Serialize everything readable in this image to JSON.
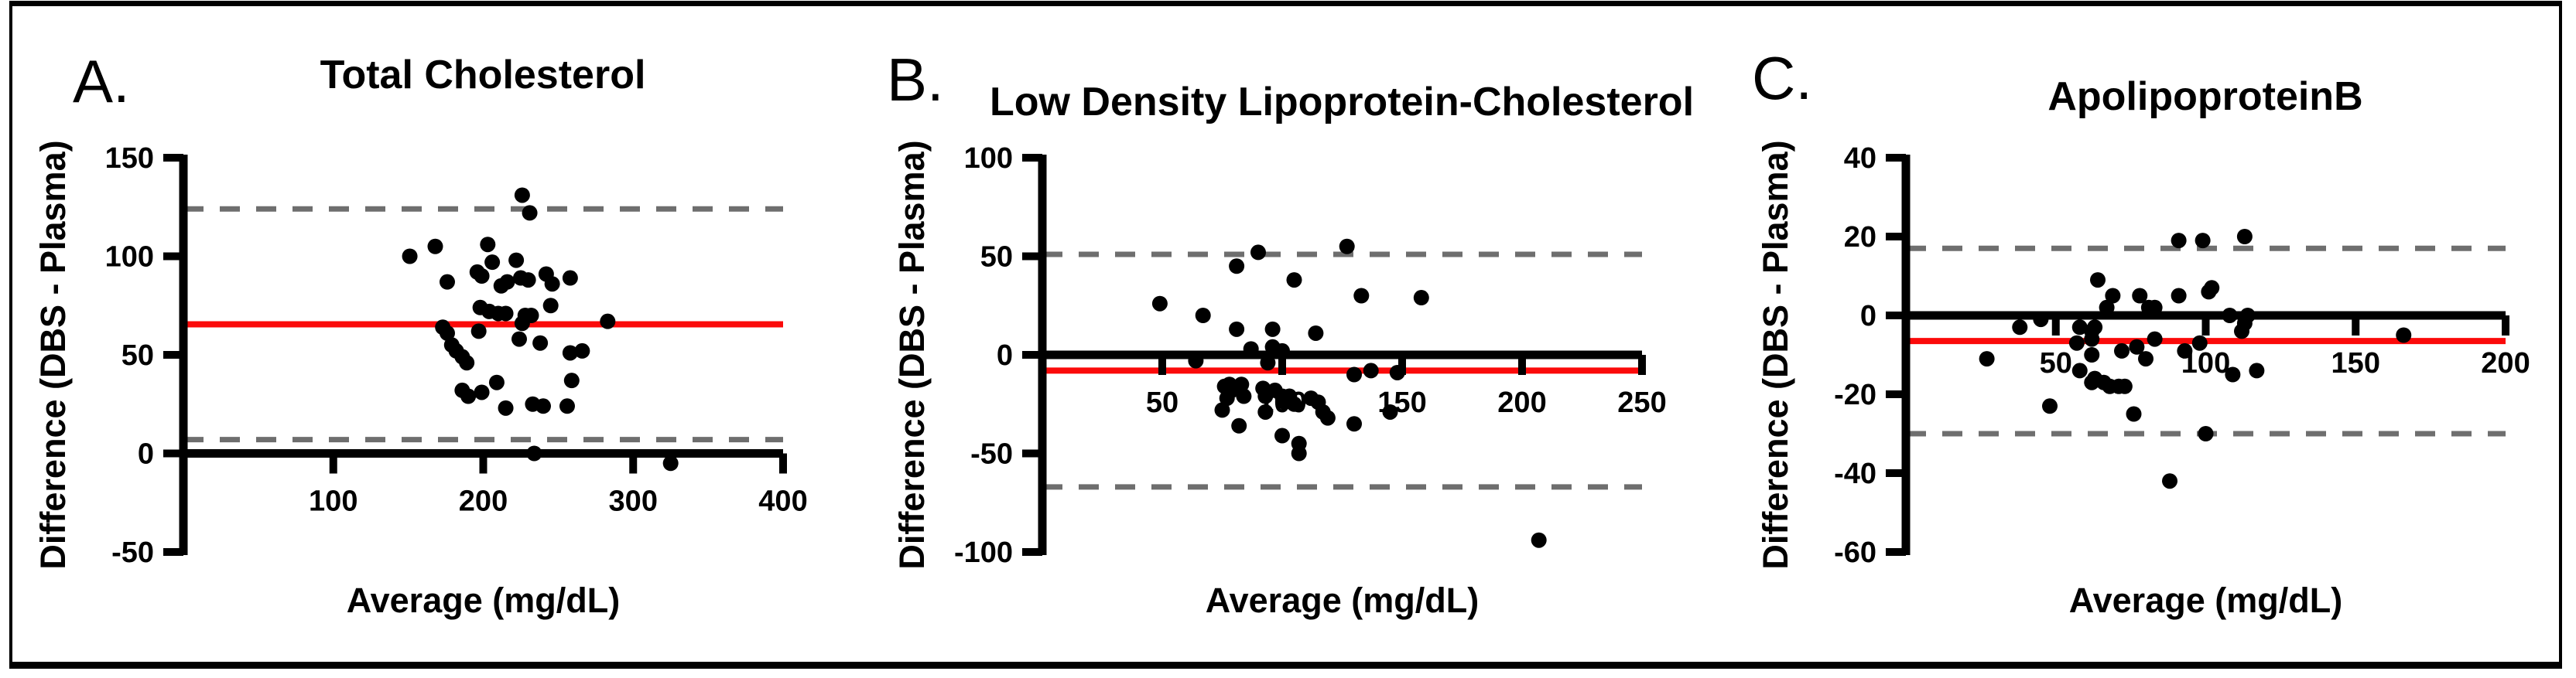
{
  "figure": {
    "background": "#ffffff",
    "frame_border_color": "#000000",
    "panel_labels": [
      "A.",
      "B.",
      "C."
    ]
  },
  "chart_data": [
    {
      "type": "scatter",
      "panel_label": "A.",
      "title": "Total Cholesterol",
      "xlabel": "Average (mg/dL)",
      "ylabel": "Difference (DBS - Plasma)",
      "xlim": [
        0,
        400
      ],
      "ylim": [
        -50,
        150
      ],
      "xticks": [
        100,
        200,
        300,
        400
      ],
      "yticks": [
        -50,
        0,
        50,
        100,
        150
      ],
      "grid": false,
      "legend": "none",
      "mean_diff": 65.5,
      "loa_upper": 124,
      "loa_lower": 7,
      "axis_color": "#000000",
      "point_color": "#000000",
      "mean_line_color": "#fb0a0a",
      "loa_line_color": "#6e6e6e",
      "points": [
        [
          226,
          131
        ],
        [
          231,
          122
        ],
        [
          151,
          100
        ],
        [
          168,
          105
        ],
        [
          203,
          106
        ],
        [
          196,
          92
        ],
        [
          199,
          90
        ],
        [
          206,
          97
        ],
        [
          222,
          98
        ],
        [
          212,
          85
        ],
        [
          216,
          87
        ],
        [
          176,
          87
        ],
        [
          225,
          89
        ],
        [
          230,
          88
        ],
        [
          242,
          91
        ],
        [
          246,
          86
        ],
        [
          258,
          89
        ],
        [
          198,
          74
        ],
        [
          204,
          72
        ],
        [
          210,
          71
        ],
        [
          215,
          71
        ],
        [
          228,
          70
        ],
        [
          232,
          70
        ],
        [
          245,
          75
        ],
        [
          226,
          66
        ],
        [
          173,
          64
        ],
        [
          176,
          61
        ],
        [
          197,
          62
        ],
        [
          283,
          67
        ],
        [
          224,
          58
        ],
        [
          238,
          56
        ],
        [
          179,
          55
        ],
        [
          182,
          52
        ],
        [
          186,
          49
        ],
        [
          189,
          46
        ],
        [
          258,
          51
        ],
        [
          266,
          52
        ],
        [
          186,
          32
        ],
        [
          190,
          29
        ],
        [
          199,
          31
        ],
        [
          209,
          36
        ],
        [
          259,
          37
        ],
        [
          215,
          23
        ],
        [
          233,
          25
        ],
        [
          240,
          24
        ],
        [
          256,
          24
        ],
        [
          234,
          0
        ],
        [
          325,
          -5
        ]
      ]
    },
    {
      "type": "scatter",
      "panel_label": "B.",
      "title": "Low Density Lipoprotein-Cholesterol",
      "xlabel": "Average (mg/dL)",
      "ylabel": "Difference (DBS - Plasma)",
      "xlim": [
        0,
        250
      ],
      "ylim": [
        -100,
        100
      ],
      "xticks": [
        50,
        100,
        150,
        200,
        250
      ],
      "yticks": [
        -100,
        -50,
        0,
        50,
        100
      ],
      "grid": false,
      "legend": "none",
      "mean_diff": -8,
      "loa_upper": 51,
      "loa_lower": -67,
      "axis_color": "#000000",
      "point_color": "#000000",
      "mean_line_color": "#fb0a0a",
      "loa_line_color": "#6e6e6e",
      "points": [
        [
          90,
          52
        ],
        [
          127,
          55
        ],
        [
          81,
          45
        ],
        [
          105,
          38
        ],
        [
          133,
          30
        ],
        [
          158,
          29
        ],
        [
          49,
          26
        ],
        [
          67,
          20
        ],
        [
          81,
          13
        ],
        [
          96,
          13
        ],
        [
          114,
          11
        ],
        [
          87,
          3
        ],
        [
          96,
          4
        ],
        [
          100,
          2
        ],
        [
          64,
          -3
        ],
        [
          94,
          -4
        ],
        [
          130,
          -10
        ],
        [
          137,
          -8
        ],
        [
          148,
          -9
        ],
        [
          76,
          -16
        ],
        [
          78,
          -15
        ],
        [
          83,
          -15
        ],
        [
          79,
          -18
        ],
        [
          84,
          -21
        ],
        [
          77,
          -22
        ],
        [
          92,
          -17
        ],
        [
          93,
          -21
        ],
        [
          97,
          -18
        ],
        [
          100,
          -21
        ],
        [
          103,
          -21
        ],
        [
          101,
          -24
        ],
        [
          105,
          -25
        ],
        [
          112,
          -22
        ],
        [
          115,
          -24
        ],
        [
          75,
          -28
        ],
        [
          93,
          -29
        ],
        [
          117,
          -29
        ],
        [
          119,
          -32
        ],
        [
          130,
          -35
        ],
        [
          145,
          -29
        ],
        [
          82,
          -36
        ],
        [
          100,
          -41
        ],
        [
          107,
          -45
        ],
        [
          107,
          -50
        ],
        [
          207,
          -94
        ]
      ]
    },
    {
      "type": "scatter",
      "panel_label": "C.",
      "title": "ApolipoproteinB",
      "xlabel": "Average (mg/dL)",
      "ylabel": "Difference (DBS - Plasma)",
      "xlim": [
        0,
        200
      ],
      "ylim": [
        -60,
        40
      ],
      "xticks": [
        50,
        100,
        150,
        200
      ],
      "yticks": [
        -60,
        -40,
        -20,
        0,
        20,
        40
      ],
      "grid": false,
      "legend": "none",
      "mean_diff": -6.5,
      "loa_upper": 17,
      "loa_lower": -30,
      "axis_color": "#000000",
      "point_color": "#000000",
      "mean_line_color": "#fb0a0a",
      "loa_line_color": "#6e6e6e",
      "points": [
        [
          91,
          19
        ],
        [
          99,
          19
        ],
        [
          113,
          20
        ],
        [
          64,
          9
        ],
        [
          69,
          5
        ],
        [
          78,
          5
        ],
        [
          91,
          5
        ],
        [
          101,
          6
        ],
        [
          102,
          7
        ],
        [
          67,
          2
        ],
        [
          81,
          2
        ],
        [
          83,
          2
        ],
        [
          38,
          -3
        ],
        [
          45,
          -1
        ],
        [
          58,
          -3
        ],
        [
          63,
          -3
        ],
        [
          62,
          -4
        ],
        [
          108,
          0
        ],
        [
          114,
          0
        ],
        [
          113,
          -2
        ],
        [
          112,
          -4
        ],
        [
          166,
          -5
        ],
        [
          62,
          -6
        ],
        [
          83,
          -6
        ],
        [
          57,
          -7
        ],
        [
          62,
          -10
        ],
        [
          72,
          -9
        ],
        [
          77,
          -8
        ],
        [
          93,
          -9
        ],
        [
          98,
          -7
        ],
        [
          80,
          -11
        ],
        [
          27,
          -11
        ],
        [
          58,
          -14
        ],
        [
          109,
          -15
        ],
        [
          117,
          -14
        ],
        [
          62,
          -17
        ],
        [
          63,
          -16
        ],
        [
          66,
          -17
        ],
        [
          68,
          -18
        ],
        [
          71,
          -18
        ],
        [
          73,
          -18
        ],
        [
          48,
          -23
        ],
        [
          76,
          -25
        ],
        [
          100,
          -30
        ],
        [
          88,
          -42
        ]
      ]
    }
  ]
}
